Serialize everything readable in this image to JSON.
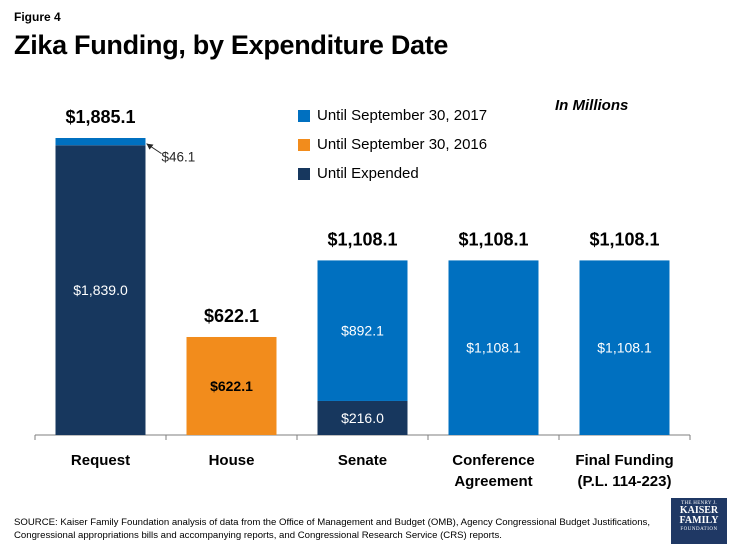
{
  "figure_label": "Figure 4",
  "units_note": "In Millions",
  "colors": {
    "until_sep_2017": "#0070c0",
    "until_sep_2016": "#f28c1c",
    "until_expended": "#17375e",
    "axis": "#7f7f7f"
  },
  "legend": [
    {
      "label": "Until September 30, 2017",
      "color": "#0070c0"
    },
    {
      "label": "Until September 30, 2016",
      "color": "#f28c1c"
    },
    {
      "label": "Until Expended",
      "color": "#17375e"
    }
  ],
  "chart_data": {
    "type": "bar",
    "stacked": true,
    "title": "Zika Funding, by Expenditure Date",
    "categories": [
      "Request",
      "House",
      "Senate",
      "Conference Agreement",
      "Final Funding (P.L. 114-223)"
    ],
    "category_lines": [
      [
        "Request"
      ],
      [
        "House"
      ],
      [
        "Senate"
      ],
      [
        "Conference",
        "Agreement"
      ],
      [
        "Final Funding",
        "(P.L. 114-223)"
      ]
    ],
    "series": [
      {
        "name": "Until Expended",
        "color": "#17375e",
        "values": [
          1839.0,
          0,
          216.0,
          0,
          0
        ],
        "labels": [
          "$1,839.0",
          "",
          "$216.0",
          "",
          ""
        ]
      },
      {
        "name": "Until September 30, 2016",
        "color": "#f28c1c",
        "values": [
          0,
          622.1,
          0,
          0,
          0
        ],
        "labels": [
          "",
          "$622.1",
          "",
          "",
          ""
        ]
      },
      {
        "name": "Until September 30, 2017",
        "color": "#0070c0",
        "values": [
          46.1,
          0,
          892.1,
          1108.1,
          1108.1
        ],
        "labels": [
          "$46.1",
          "",
          "$892.1",
          "$1,108.1",
          "$1,108.1"
        ]
      }
    ],
    "totals": [
      "$1,885.1",
      "$622.1",
      "$1,108.1",
      "$1,108.1",
      "$1,108.1"
    ],
    "ylim": [
      0,
      1885.1
    ],
    "grid": false
  },
  "source": "SOURCE: Kaiser Family Foundation analysis of data from the Office of Management and Budget (OMB), Agency Congressional Budget Justifications, Congressional appropriations bills and accompanying reports, and Congressional Research Service (CRS) reports.",
  "logo": {
    "line1": "THE HENRY J.",
    "line2": "KAISER",
    "line3": "FAMILY",
    "line4": "FOUNDATION"
  }
}
